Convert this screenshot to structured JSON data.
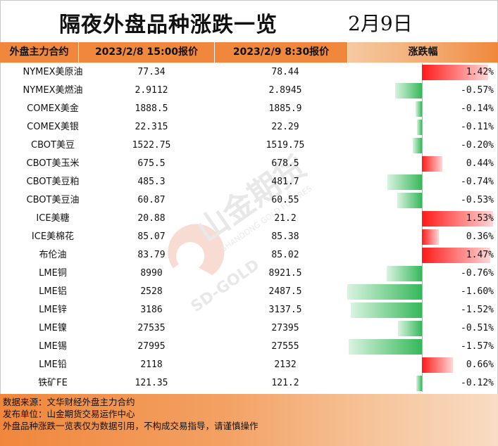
{
  "title": "隔夜外盘品种涨跌一览",
  "date": "2月9日",
  "columns": {
    "name": "外盘主力合约",
    "prev": "2023/2/8 15:00报价",
    "curr": "2023/2/9 8:30报价",
    "change": "涨跌幅"
  },
  "rows": [
    {
      "name": "NYMEX美原油",
      "prev": "77.34",
      "curr": "78.44",
      "pct": "1.42%",
      "value": 1.42
    },
    {
      "name": "NYMEX美燃油",
      "prev": "2.9112",
      "curr": "2.8945",
      "pct": "-0.57%",
      "value": -0.57
    },
    {
      "name": "COMEX美金",
      "prev": "1888.5",
      "curr": "1885.9",
      "pct": "-0.14%",
      "value": -0.14
    },
    {
      "name": "COMEX美银",
      "prev": "22.315",
      "curr": "22.29",
      "pct": "-0.11%",
      "value": -0.11
    },
    {
      "name": "CBOT美豆",
      "prev": "1522.75",
      "curr": "1519.75",
      "pct": "-0.20%",
      "value": -0.2
    },
    {
      "name": "CBOT美玉米",
      "prev": "675.5",
      "curr": "678.5",
      "pct": "0.44%",
      "value": 0.44
    },
    {
      "name": "CBOT美豆粕",
      "prev": "485.3",
      "curr": "481.7",
      "pct": "-0.74%",
      "value": -0.74
    },
    {
      "name": "CBOT美豆油",
      "prev": "60.87",
      "curr": "60.55",
      "pct": "-0.53%",
      "value": -0.53
    },
    {
      "name": "ICE美糖",
      "prev": "20.88",
      "curr": "21.2",
      "pct": "1.53%",
      "value": 1.53
    },
    {
      "name": "ICE美棉花",
      "prev": "85.07",
      "curr": "85.38",
      "pct": "0.36%",
      "value": 0.36
    },
    {
      "name": "布伦油",
      "prev": "83.79",
      "curr": "85.02",
      "pct": "1.47%",
      "value": 1.47
    },
    {
      "name": "LME铜",
      "prev": "8990",
      "curr": "8921.5",
      "pct": "-0.76%",
      "value": -0.76
    },
    {
      "name": "LME铝",
      "prev": "2528",
      "curr": "2487.5",
      "pct": "-1.60%",
      "value": -1.6
    },
    {
      "name": "LME锌",
      "prev": "3186",
      "curr": "3137.5",
      "pct": "-1.52%",
      "value": -1.52
    },
    {
      "name": "LME镍",
      "prev": "27535",
      "curr": "27395",
      "pct": "-0.51%",
      "value": -0.51
    },
    {
      "name": "LME锡",
      "prev": "27995",
      "curr": "27555",
      "pct": "-1.57%",
      "value": -1.57
    },
    {
      "name": "LME铅",
      "prev": "2118",
      "curr": "2132",
      "pct": "0.66%",
      "value": 0.66
    },
    {
      "name": "铁矿FE",
      "prev": "121.35",
      "curr": "121.2",
      "pct": "-0.12%",
      "value": -0.12
    }
  ],
  "colors": {
    "up": "#ff1a1a",
    "down": "#36b85a",
    "header": "#f0873c"
  },
  "watermark": {
    "brand": "山金期货",
    "en1": "SHANDONG GOLD FUTURES",
    "en2": "SD-GOLD"
  },
  "footer": {
    "source": "数据来源：文华财经外盘主力合约",
    "publisher": "发布单位：山金期货交易运作中心",
    "disclaimer": "外盘品种涨跌一览表仅为数据引用，不构成交易指导，请谨慎操作"
  }
}
